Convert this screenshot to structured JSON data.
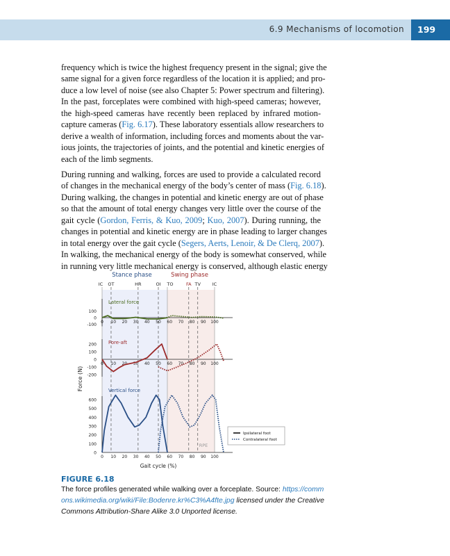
{
  "header": {
    "section_title": "6.9 Mechanisms of locomotion",
    "page_number": "199",
    "band_color": "#c6dcec",
    "page_box_color": "#1b6aa5"
  },
  "paragraphs": [
    [
      [
        {
          "t": "frequency which is twice the highest frequency present in the signal; give the"
        }
      ],
      [
        {
          "t": "same signal for a given force regardless of the location it is applied; and pro-"
        }
      ],
      [
        {
          "t": "duce a low level of noise (see also Chapter 5: Power spectrum and filtering)."
        }
      ],
      [
        {
          "t": "In the past, forceplates were combined with high-speed cameras; however,"
        }
      ],
      [
        {
          "t": "the high-speed cameras have recently been replaced by infrared motion-"
        }
      ],
      [
        {
          "t": "capture cameras ("
        },
        {
          "t": "Fig. 6.17",
          "link": true
        },
        {
          "t": "). These laboratory essentials allow researchers to"
        }
      ],
      [
        {
          "t": "derive a wealth of information, including forces and moments about the var-"
        }
      ],
      [
        {
          "t": "ious joints, the trajectories of joints, and the potential and kinetic energies of"
        }
      ],
      [
        {
          "t": "each of the limb segments."
        }
      ]
    ],
    [
      [
        {
          "t": "During running and walking, forces are used to provide a calculated record"
        }
      ],
      [
        {
          "t": "of changes in the mechanical energy of the body’s center of mass ("
        },
        {
          "t": "Fig. 6.18",
          "link": true
        },
        {
          "t": ")."
        }
      ],
      [
        {
          "t": "During walking, the changes in potential and kinetic energy are out of phase"
        }
      ],
      [
        {
          "t": "so that the amount of total energy changes very little over the course of the"
        }
      ],
      [
        {
          "t": "gait cycle ("
        },
        {
          "t": "Gordon, Ferris, & Kuo, 2009",
          "link": true
        },
        {
          "t": "; "
        },
        {
          "t": "Kuo, 2007",
          "link": true
        },
        {
          "t": "). During running, the"
        }
      ],
      [
        {
          "t": "changes in potential and kinetic energy are in phase leading to larger changes"
        }
      ],
      [
        {
          "t": "in total energy over the gait cycle ("
        },
        {
          "t": "Segers, Aerts, Lenoir, & De Clerq, 2007",
          "link": true
        },
        {
          "t": ")."
        }
      ],
      [
        {
          "t": "In walking, the mechanical energy of the body is somewhat conserved, while"
        }
      ],
      [
        {
          "t": "in running very little mechanical energy is conserved, although elastic energy"
        }
      ]
    ]
  ],
  "chart_data": {
    "type": "line",
    "phase_labels": {
      "stance": "Stance phase",
      "swing": "Swing phase"
    },
    "phase_ranges": {
      "stance": [
        0,
        58
      ],
      "swing": [
        58,
        100
      ]
    },
    "phase_colors": {
      "stance": "#eceffa",
      "swing": "#f8ecea"
    },
    "events": [
      {
        "label": "IC",
        "x": 0
      },
      {
        "label": "OT",
        "x": 8
      },
      {
        "label": "HR",
        "x": 32
      },
      {
        "label": "OI",
        "x": 50
      },
      {
        "label": "TO",
        "x": 58
      },
      {
        "label": "FA",
        "x": 77
      },
      {
        "label": "TV",
        "x": 85
      },
      {
        "label": "IC",
        "x": 100
      }
    ],
    "xlabel": "Gait cycle (%)",
    "ylabel": "Force (N)",
    "xticks": [
      0,
      10,
      20,
      30,
      40,
      50,
      60,
      70,
      80,
      90,
      100
    ],
    "watermark": "RPE",
    "legend": {
      "position": "right",
      "ipsilateral": "Ipsilateral foot",
      "contralateral": "Contralateral foot"
    },
    "panels": [
      {
        "title": "Lateral force",
        "color": "#4a6b1f",
        "ylim": [
          -100,
          100
        ],
        "yticks": [
          100,
          0,
          -100
        ],
        "ipsilateral": [
          [
            0,
            0
          ],
          [
            5,
            30
          ],
          [
            10,
            -15
          ],
          [
            20,
            -15
          ],
          [
            30,
            5
          ],
          [
            40,
            -20
          ],
          [
            50,
            -20
          ],
          [
            55,
            -10
          ],
          [
            58,
            0
          ]
        ],
        "contralateral": [
          [
            50,
            -20
          ],
          [
            58,
            0
          ],
          [
            62,
            30
          ],
          [
            70,
            18
          ],
          [
            80,
            2
          ],
          [
            88,
            15
          ],
          [
            100,
            10
          ],
          [
            105,
            0
          ],
          [
            108,
            -10
          ]
        ]
      },
      {
        "title": "Fore-aft",
        "color": "#9c2a2a",
        "ylim": [
          -200,
          200
        ],
        "yticks": [
          200,
          100,
          0,
          -100,
          -200
        ],
        "ipsilateral": [
          [
            0,
            0
          ],
          [
            4,
            -90
          ],
          [
            10,
            -160
          ],
          [
            15,
            -110
          ],
          [
            20,
            -70
          ],
          [
            30,
            -40
          ],
          [
            40,
            20
          ],
          [
            47,
            120
          ],
          [
            53,
            200
          ],
          [
            56,
            80
          ],
          [
            58,
            0
          ]
        ],
        "contralateral": [
          [
            50,
            -100
          ],
          [
            58,
            -150
          ],
          [
            65,
            -110
          ],
          [
            75,
            -50
          ],
          [
            85,
            20
          ],
          [
            95,
            120
          ],
          [
            102,
            200
          ],
          [
            105,
            100
          ],
          [
            108,
            -20
          ]
        ]
      },
      {
        "title": "Vertical force",
        "color": "#2a4f86",
        "ylim": [
          0,
          650
        ],
        "yticks": [
          600,
          500,
          400,
          300,
          200,
          100,
          0
        ],
        "ipsilateral": [
          [
            0,
            0
          ],
          [
            2,
            250
          ],
          [
            6,
            520
          ],
          [
            12,
            650
          ],
          [
            17,
            560
          ],
          [
            23,
            400
          ],
          [
            29,
            290
          ],
          [
            33,
            310
          ],
          [
            39,
            400
          ],
          [
            44,
            560
          ],
          [
            48,
            650
          ],
          [
            51,
            600
          ],
          [
            54,
            300
          ],
          [
            58,
            0
          ]
        ],
        "contralateral": [
          [
            50,
            0
          ],
          [
            52,
            250
          ],
          [
            56,
            520
          ],
          [
            62,
            650
          ],
          [
            67,
            560
          ],
          [
            72,
            400
          ],
          [
            78,
            290
          ],
          [
            82,
            310
          ],
          [
            87,
            420
          ],
          [
            92,
            560
          ],
          [
            98,
            650
          ],
          [
            101,
            600
          ],
          [
            104,
            300
          ],
          [
            108,
            0
          ]
        ]
      }
    ]
  },
  "figure": {
    "label": "FIGURE 6.18",
    "caption_text": "The force profiles generated while walking over a forceplate. Source: ",
    "caption_link": "https://commons.wikimedia.org/wiki/File:Bodenre.kr%C3%A4fte.jpg",
    "caption_license": " licensed under the Creative Commons Attribution-Share Alike 3.0 Unported license."
  }
}
